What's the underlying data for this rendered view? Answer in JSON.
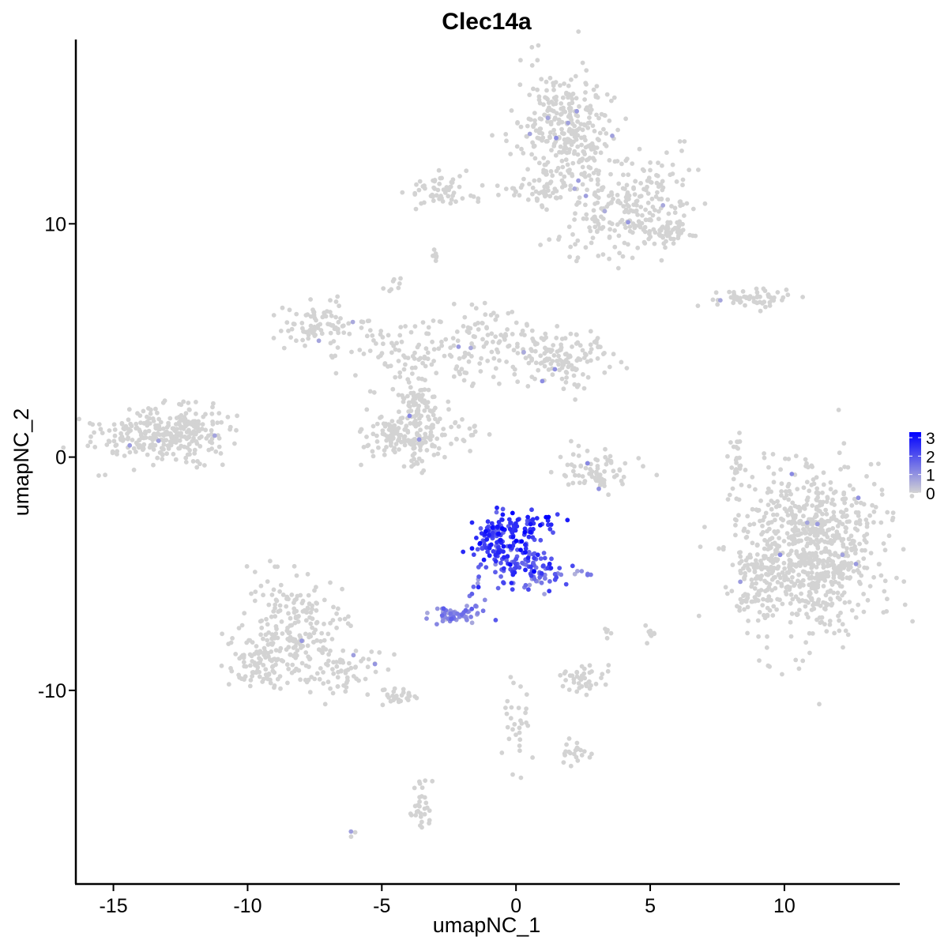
{
  "chart_data": {
    "type": "scatter",
    "title": "Clec14a",
    "xlabel": "umapNC_1",
    "ylabel": "umapNC_2",
    "xlim": [
      -16.4,
      14.3
    ],
    "ylim": [
      -18.3,
      17.9
    ],
    "x_ticks": [
      -15,
      -10,
      -5,
      0,
      5,
      10
    ],
    "x_tick_labels": [
      "-15",
      "-10",
      "-5",
      "0",
      "5",
      "10"
    ],
    "y_ticks": [
      -10,
      0,
      10
    ],
    "y_tick_labels": [
      "-10",
      "0",
      "10"
    ],
    "legend_position": "right",
    "color_scale": {
      "low": "#d3d3d3",
      "high": "#0000ff",
      "min": 0,
      "max": 3.3,
      "breaks": [
        0,
        1,
        2,
        3
      ],
      "labels": [
        "0",
        "1",
        "2",
        "3"
      ]
    },
    "clusters": [
      {
        "cx": 1.8,
        "cy": 14.0,
        "sx": 0.9,
        "sy": 1.3,
        "n": 320,
        "expr": 0
      },
      {
        "cx": 4.6,
        "cy": 11.0,
        "sx": 1.2,
        "sy": 1.0,
        "n": 200,
        "expr": 0
      },
      {
        "cx": -2.8,
        "cy": 11.5,
        "sx": 0.6,
        "sy": 0.35,
        "n": 55,
        "expr": 0
      },
      {
        "cx": 0.8,
        "cy": 11.4,
        "sx": 0.9,
        "sy": 0.3,
        "n": 40,
        "expr": 0
      },
      {
        "cx": 3.2,
        "cy": 9.8,
        "sx": 0.7,
        "sy": 0.8,
        "n": 60,
        "expr": 0
      },
      {
        "cx": 5.6,
        "cy": 9.6,
        "sx": 0.35,
        "sy": 0.3,
        "n": 45,
        "expr": 0
      },
      {
        "cx": 8.8,
        "cy": 6.8,
        "sx": 0.8,
        "sy": 0.2,
        "n": 60,
        "expr": 0
      },
      {
        "cx": -3.0,
        "cy": 8.6,
        "sx": 0.1,
        "sy": 0.1,
        "n": 6,
        "expr": 0
      },
      {
        "cx": -4.6,
        "cy": 7.3,
        "sx": 0.15,
        "sy": 0.2,
        "n": 8,
        "expr": 0
      },
      {
        "cx": -7.2,
        "cy": 5.7,
        "sx": 0.8,
        "sy": 0.5,
        "n": 90,
        "expr": 0
      },
      {
        "cx": -4.5,
        "cy": 4.5,
        "sx": 1.1,
        "sy": 0.7,
        "n": 70,
        "expr": 0
      },
      {
        "cx": -1.0,
        "cy": 4.8,
        "sx": 1.3,
        "sy": 0.9,
        "n": 120,
        "expr": 0
      },
      {
        "cx": 1.7,
        "cy": 4.3,
        "sx": 0.9,
        "sy": 0.6,
        "n": 130,
        "expr": 0
      },
      {
        "cx": -4.7,
        "cy": 0.8,
        "sx": 0.6,
        "sy": 0.5,
        "n": 80,
        "expr": 0
      },
      {
        "cx": -3.5,
        "cy": 0.8,
        "sx": 0.5,
        "sy": 0.7,
        "n": 100,
        "expr": 0
      },
      {
        "cx": -3.8,
        "cy": 2.4,
        "sx": 0.4,
        "sy": 0.5,
        "n": 60,
        "expr": 0
      },
      {
        "cx": -1.8,
        "cy": 1.0,
        "sx": 0.4,
        "sy": 0.3,
        "n": 15,
        "expr": 0
      },
      {
        "cx": -13.3,
        "cy": 0.9,
        "sx": 1.1,
        "sy": 0.55,
        "n": 250,
        "expr": 0
      },
      {
        "cx": -12.3,
        "cy": 1.5,
        "sx": 0.7,
        "sy": 0.5,
        "n": 60,
        "expr": 0
      },
      {
        "cx": 3.1,
        "cy": -0.6,
        "sx": 0.8,
        "sy": 0.5,
        "n": 75,
        "expr": 0
      },
      {
        "cx": 8.2,
        "cy": 0.0,
        "sx": 0.15,
        "sy": 0.7,
        "n": 25,
        "expr": 0
      },
      {
        "cx": 11.0,
        "cy": -4.0,
        "sx": 1.25,
        "sy": 1.7,
        "n": 800,
        "expr": 0
      },
      {
        "cx": 8.9,
        "cy": -5.3,
        "sx": 0.55,
        "sy": 0.8,
        "n": 90,
        "expr": 0
      },
      {
        "cx": -8.5,
        "cy": -7.5,
        "sx": 0.9,
        "sy": 1.1,
        "n": 230,
        "expr": 0
      },
      {
        "cx": -9.5,
        "cy": -9.0,
        "sx": 0.6,
        "sy": 0.5,
        "n": 60,
        "expr": 0
      },
      {
        "cx": -6.4,
        "cy": -9.2,
        "sx": 0.8,
        "sy": 0.5,
        "n": 65,
        "expr": 0
      },
      {
        "cx": -4.4,
        "cy": -10.2,
        "sx": 0.4,
        "sy": 0.2,
        "n": 25,
        "expr": 0
      },
      {
        "cx": 2.5,
        "cy": -9.5,
        "sx": 0.4,
        "sy": 0.3,
        "n": 40,
        "expr": 0
      },
      {
        "cx": 5.0,
        "cy": -7.6,
        "sx": 0.1,
        "sy": 0.3,
        "n": 8,
        "expr": 0
      },
      {
        "cx": 3.4,
        "cy": -7.7,
        "sx": 0.1,
        "sy": 0.3,
        "n": 5,
        "expr": 0
      },
      {
        "cx": 0.1,
        "cy": -11.5,
        "sx": 0.3,
        "sy": 1.0,
        "n": 30,
        "expr": 0
      },
      {
        "cx": 2.3,
        "cy": -12.6,
        "sx": 0.4,
        "sy": 0.2,
        "n": 22,
        "expr": 0
      },
      {
        "cx": -3.5,
        "cy": -14.7,
        "sx": 0.2,
        "sy": 0.6,
        "n": 30,
        "expr": 0
      },
      {
        "cx": -6.1,
        "cy": -16.1,
        "sx": 0.08,
        "sy": 0.08,
        "n": 3,
        "expr": 0
      },
      {
        "cx": 0.4,
        "cy": -3.0,
        "sx": 0.6,
        "sy": 0.4,
        "n": 60,
        "expr": 2.5
      },
      {
        "cx": -0.7,
        "cy": -3.6,
        "sx": 0.45,
        "sy": 0.55,
        "n": 110,
        "expr": 2.2
      },
      {
        "cx": 0.4,
        "cy": -4.6,
        "sx": 0.7,
        "sy": 0.45,
        "n": 80,
        "expr": 2.0
      },
      {
        "cx": 1.0,
        "cy": -5.3,
        "sx": 0.2,
        "sy": 0.3,
        "n": 15,
        "expr": 1.8
      },
      {
        "cx": -1.4,
        "cy": -5.9,
        "sx": 0.3,
        "sy": 0.6,
        "n": 15,
        "expr": 1.6
      },
      {
        "cx": -2.3,
        "cy": -6.8,
        "sx": 0.35,
        "sy": 0.18,
        "n": 55,
        "expr": 1.2
      },
      {
        "cx": 2.7,
        "cy": -5.0,
        "sx": 0.2,
        "sy": 0.08,
        "n": 6,
        "expr": 1.0
      }
    ]
  }
}
